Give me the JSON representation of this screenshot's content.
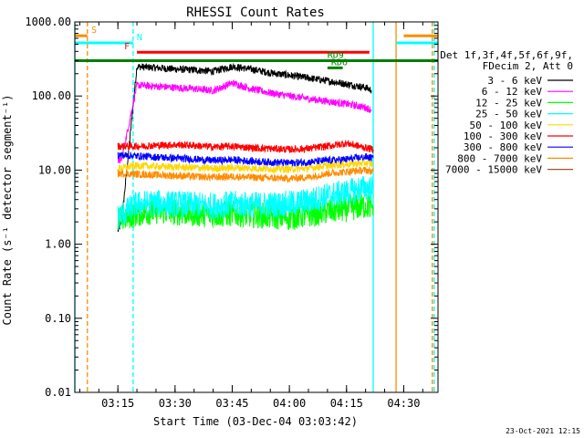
{
  "chart_data": {
    "type": "line",
    "title": "RHESSI Count Rates",
    "xlabel": "Start Time (03-Dec-04 03:03:42)",
    "ylabel": "Count Rate (s⁻¹ detector segment⁻¹)",
    "y_scale": "log",
    "ylim": [
      0.01,
      1000
    ],
    "xlim": [
      "03:03:42",
      "04:39:00"
    ],
    "x_ticks": [
      "03:15",
      "03:30",
      "03:45",
      "04:00",
      "04:15",
      "04:30"
    ],
    "y_ticks": [
      "0.01",
      "0.10",
      "1.00",
      "10.00",
      "100.00",
      "1000.00"
    ],
    "legend_header": [
      "Det 1f,3f,4f,5f,6f,9f,",
      "FDecim 2, Att 0"
    ],
    "legend_position": "right",
    "series": [
      {
        "name": "3 - 6 keV",
        "color": "#000000",
        "x": [
          "03:15:00",
          "03:16:00",
          "03:20:00",
          "03:25:00",
          "03:30:00",
          "03:35:00",
          "03:40:00",
          "03:45:00",
          "03:50:00",
          "03:55:00",
          "04:00:00",
          "04:05:00",
          "04:10:00",
          "04:15:00",
          "04:20:00",
          "04:21:30"
        ],
        "y": [
          1.5,
          2,
          250,
          240,
          230,
          225,
          215,
          250,
          230,
          205,
          190,
          175,
          160,
          145,
          130,
          120
        ]
      },
      {
        "name": "6 - 12 keV",
        "color": "#ff00ff",
        "x": [
          "03:15:00",
          "03:16:00",
          "03:20:00",
          "03:25:00",
          "03:30:00",
          "03:35:00",
          "03:40:00",
          "03:45:00",
          "03:50:00",
          "03:55:00",
          "04:00:00",
          "04:05:00",
          "04:10:00",
          "04:15:00",
          "04:20:00",
          "04:21:30"
        ],
        "y": [
          13,
          14,
          140,
          135,
          130,
          125,
          118,
          150,
          125,
          110,
          100,
          92,
          85,
          78,
          70,
          65
        ]
      },
      {
        "name": "12 - 25 keV",
        "color": "#00ff00",
        "x": [
          "03:15:00",
          "03:20:00",
          "03:25:00",
          "03:30:00",
          "03:35:00",
          "03:40:00",
          "03:45:00",
          "03:50:00",
          "03:55:00",
          "04:00:00",
          "04:05:00",
          "04:10:00",
          "04:15:00",
          "04:20:00",
          "04:22:00"
        ],
        "y": [
          2.1,
          2.6,
          2.8,
          2.7,
          2.6,
          2.5,
          2.6,
          2.5,
          2.4,
          2.3,
          2.5,
          2.8,
          3.0,
          3.3,
          3.2
        ]
      },
      {
        "name": "25 - 50 keV",
        "color": "#00ffff",
        "x": [
          "03:15:00",
          "03:20:00",
          "03:25:00",
          "03:30:00",
          "03:35:00",
          "03:40:00",
          "03:45:00",
          "03:50:00",
          "03:55:00",
          "04:00:00",
          "04:05:00",
          "04:10:00",
          "04:15:00",
          "04:20:00",
          "04:22:00"
        ],
        "y": [
          2.3,
          3.5,
          3.6,
          3.5,
          3.4,
          3.3,
          3.5,
          3.4,
          3.4,
          3.5,
          3.8,
          4.5,
          5.0,
          5.8,
          5.5
        ]
      },
      {
        "name": "50 - 100 keV",
        "color": "#ffd700",
        "x": [
          "03:15:00",
          "03:20:00",
          "03:25:00",
          "03:30:00",
          "03:35:00",
          "03:40:00",
          "03:45:00",
          "03:50:00",
          "03:55:00",
          "04:00:00",
          "04:05:00",
          "04:10:00",
          "04:15:00",
          "04:20:00",
          "04:22:00"
        ],
        "y": [
          10.5,
          11.5,
          11.2,
          11.0,
          10.8,
          10.5,
          10.8,
          10.6,
          10.4,
          10.3,
          10.6,
          11.5,
          12.0,
          12.5,
          12.0
        ]
      },
      {
        "name": "100 - 300 keV",
        "color": "#ff0000",
        "x": [
          "03:15:00",
          "03:20:00",
          "03:25:00",
          "03:30:00",
          "03:35:00",
          "03:40:00",
          "03:45:00",
          "03:50:00",
          "03:55:00",
          "04:00:00",
          "04:05:00",
          "04:10:00",
          "04:15:00",
          "04:20:00",
          "04:22:00"
        ],
        "y": [
          21,
          21,
          21.5,
          22,
          21.5,
          20.5,
          21,
          20,
          19.5,
          19,
          19.5,
          21,
          23,
          20,
          19
        ]
      },
      {
        "name": "300 - 800 keV",
        "color": "#0000ff",
        "x": [
          "03:15:00",
          "03:20:00",
          "03:25:00",
          "03:30:00",
          "03:35:00",
          "03:40:00",
          "03:45:00",
          "03:50:00",
          "03:55:00",
          "04:00:00",
          "04:05:00",
          "04:10:00",
          "04:15:00",
          "04:20:00",
          "04:22:00"
        ],
        "y": [
          16,
          15.5,
          15,
          14.5,
          14,
          13.5,
          13.8,
          13.2,
          12.8,
          12.5,
          12.8,
          13.5,
          14,
          15,
          14.5
        ]
      },
      {
        "name": "800 - 7000 keV",
        "color": "#ff8c00",
        "x": [
          "03:15:00",
          "03:20:00",
          "03:25:00",
          "03:30:00",
          "03:35:00",
          "03:40:00",
          "03:45:00",
          "03:50:00",
          "03:55:00",
          "04:00:00",
          "04:05:00",
          "04:10:00",
          "04:15:00",
          "04:20:00",
          "04:22:00"
        ],
        "y": [
          9,
          8.8,
          8.6,
          8.4,
          8.2,
          8.0,
          8.2,
          8.0,
          7.8,
          7.7,
          8.0,
          9.0,
          9.5,
          10.0,
          9.5
        ]
      },
      {
        "name": "7000 - 15000 keV",
        "color": "#a0522d",
        "x": [],
        "y": []
      }
    ],
    "attenuator_bars": [
      {
        "label": "S",
        "color": "#ff8c00",
        "x1": "03:03:42",
        "x2": "03:07:00",
        "y": 650
      },
      {
        "label": "",
        "color": "#ff8c00",
        "x1": "04:30:00",
        "x2": "04:39:00",
        "y": 650
      },
      {
        "label": "N",
        "color": "#00ffff",
        "x1": "03:03:42",
        "x2": "03:19:00",
        "y": 520
      },
      {
        "label": "",
        "color": "#00ffff",
        "x1": "04:28:00",
        "x2": "04:39:00",
        "y": 520
      },
      {
        "label": "F",
        "color": "#ff0000",
        "x1": "03:20:00",
        "x2": "04:21:00",
        "y": 390
      },
      {
        "label": "RD9",
        "color": "#007f00",
        "x1": "04:09:00",
        "x2": "04:11:00",
        "y": 300
      },
      {
        "label": "RD6",
        "color": "#007f00",
        "x1": "04:10:00",
        "x2": "04:14:00",
        "y": 240
      },
      {
        "label": "",
        "color": "#007f00",
        "x1": "03:03:42",
        "x2": "04:39:00",
        "y": 300
      }
    ],
    "vlines": [
      {
        "x": "03:03:42",
        "color": "#00ffff",
        "style": "solid"
      },
      {
        "x": "03:07:00",
        "color": "#ff8c00",
        "style": "dashed"
      },
      {
        "x": "03:19:00",
        "color": "#00ffff",
        "style": "dashed"
      },
      {
        "x": "04:22:00",
        "color": "#00ffff",
        "style": "solid"
      },
      {
        "x": "04:28:00",
        "color": "#ff8c00",
        "style": "solid"
      },
      {
        "x": "04:38:00",
        "color": "#00ffff",
        "style": "dashed"
      },
      {
        "x": "04:37:30",
        "color": "#ff8c00",
        "style": "dashed"
      }
    ]
  },
  "footer": {
    "timestamp": "23-Oct-2021 12:15"
  }
}
